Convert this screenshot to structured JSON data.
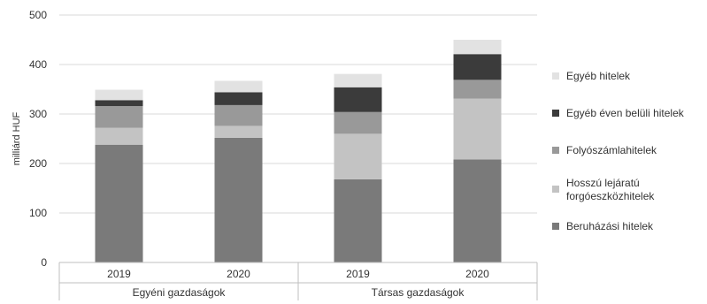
{
  "chart_data": {
    "type": "bar",
    "stacked": true,
    "ylabel": "milliárd HUF",
    "ylim": [
      0,
      500
    ],
    "yticks": [
      0,
      100,
      200,
      300,
      400,
      500
    ],
    "grid": true,
    "legend_position": "right",
    "categories": [
      {
        "year": "2019",
        "group": "Egyéni gazdaságok"
      },
      {
        "year": "2020",
        "group": "Egyéni gazdaságok"
      },
      {
        "year": "2019",
        "group": "Társas gazdaságok"
      },
      {
        "year": "2020",
        "group": "Társas gazdaságok"
      }
    ],
    "groups": [
      "Egyéni gazdaságok",
      "Társas gazdaságok"
    ],
    "series": [
      {
        "name": "Beruházási hitelek",
        "color": "#7a7a7a",
        "values": [
          238,
          252,
          168,
          208
        ]
      },
      {
        "name": "Hosszú lejáratú forgóeszközhitelek",
        "color": "#c3c3c3",
        "values": [
          34,
          24,
          92,
          123
        ]
      },
      {
        "name": "Folyószámlahitelek",
        "color": "#999999",
        "values": [
          44,
          42,
          44,
          38
        ]
      },
      {
        "name": "Egyéb éven belüli hitelek",
        "color": "#3b3b3b",
        "values": [
          12,
          26,
          50,
          52
        ]
      },
      {
        "name": "Egyéb hitelek",
        "color": "#e2e2e2",
        "values": [
          21,
          23,
          27,
          29
        ]
      }
    ]
  }
}
